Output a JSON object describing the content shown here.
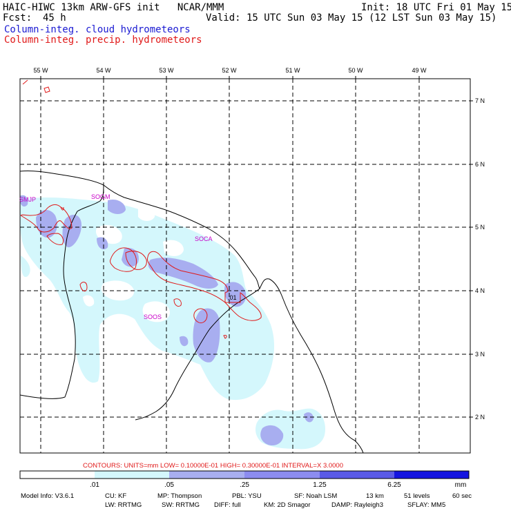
{
  "header": {
    "title_left": "HAIC-HIWC 13km ARW-GFS init   NCAR/MMM",
    "fcst_label": "Fcst:",
    "fcst_value": "45 h",
    "init": "Init: 18 UTC Fri 01 May 15",
    "valid": "Valid: 15 UTC Sun 03 May 15 (12 LST Sun 03 May 15)",
    "legend_cloud": "Column-integ. cloud hydrometeors",
    "legend_precip": "Column-integ. precip. hydrometeors"
  },
  "colors": {
    "cloud_text": "#1a1ad2",
    "precip_text": "#e01818",
    "shade_1": "#d4f7fc",
    "shade_2": "#a8aef0",
    "shade_3": "#6666e8",
    "shade_4": "#1414e0"
  },
  "axes": {
    "lon_labels": [
      "55 W",
      "54 W",
      "53 W",
      "52 W",
      "51 W",
      "50 W",
      "49 W"
    ],
    "lat_labels": [
      "7 N",
      "6 N",
      "5 N",
      "4 N",
      "3 N",
      "2 N"
    ]
  },
  "stations": [
    "SMJP",
    "SOGM",
    "SOCA",
    "SOOS"
  ],
  "contour_label": ".01",
  "contours_info": "CONTOURS:  UNITS=mm  LOW= 0.10000E-01  HIGH= 0.30000E-01  INTERVAL=X  3.0000",
  "colorbar": {
    "ticks": [
      ".01",
      ".05",
      ".25",
      "1.25",
      "6.25"
    ],
    "units": "mm"
  },
  "footer": {
    "line1": [
      "Model Info: V3.6.1",
      "CU: KF",
      "MP: Thompson",
      "PBL: YSU",
      "SF: Noah LSM",
      "13 km",
      "51 levels",
      "60 sec"
    ],
    "line2": [
      "LW: RRTMG",
      "SW: RRTMG",
      "DIFF: full",
      "KM: 2D Smagor",
      "DAMP: Rayleigh3",
      "SFLAY: MM5"
    ]
  }
}
